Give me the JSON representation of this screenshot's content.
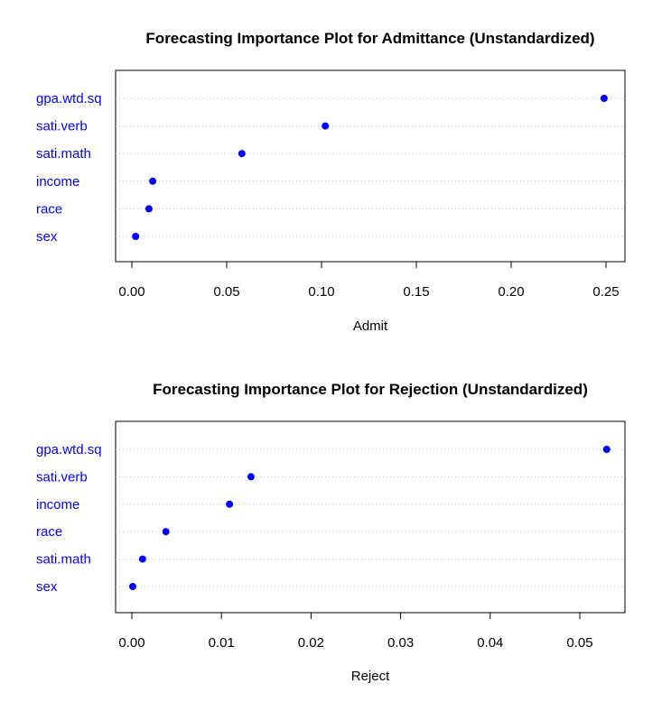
{
  "chart_data": [
    {
      "type": "scatter",
      "title": "Forecasting Importance Plot for Admittance (Unstandardized)",
      "xlabel": "Admit",
      "ylabel": "",
      "xlim": [
        0,
        0.25
      ],
      "xticks": [
        "0.00",
        "0.05",
        "0.10",
        "0.15",
        "0.20",
        "0.25"
      ],
      "categories": [
        "gpa.wtd.sq",
        "sati.verb",
        "sati.math",
        "income",
        "race",
        "sex"
      ],
      "values": [
        0.249,
        0.102,
        0.058,
        0.011,
        0.009,
        0.002
      ],
      "point_color": "#0000ff",
      "label_color": "#0000ff",
      "grid": "dotted horizontal"
    },
    {
      "type": "scatter",
      "title": "Forecasting Importance Plot for Rejection (Unstandardized)",
      "xlabel": "Reject",
      "ylabel": "",
      "xlim": [
        0,
        0.05
      ],
      "xticks": [
        "0.00",
        "0.01",
        "0.02",
        "0.03",
        "0.04",
        "0.05"
      ],
      "categories": [
        "gpa.wtd.sq",
        "sati.verb",
        "income",
        "race",
        "sati.math",
        "sex"
      ],
      "values": [
        0.053,
        0.0133,
        0.0109,
        0.0038,
        0.0012,
        0.0001
      ],
      "point_color": "#0000ff",
      "label_color": "#0000ff",
      "grid": "dotted horizontal"
    }
  ]
}
